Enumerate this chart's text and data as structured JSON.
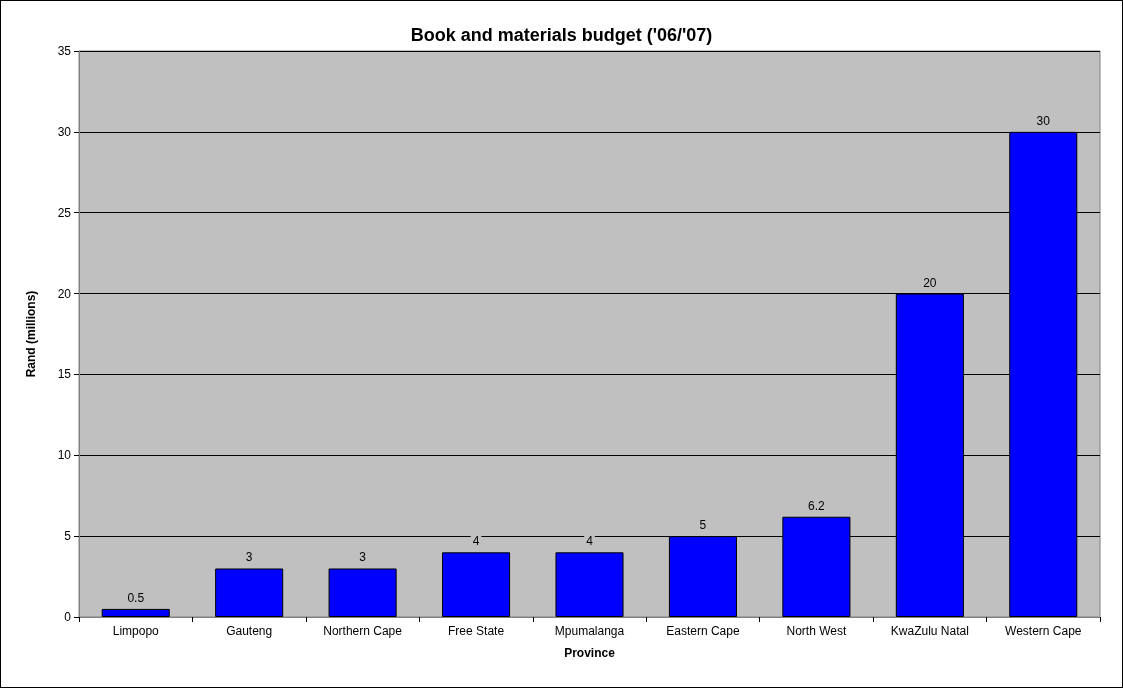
{
  "chart_data": {
    "type": "bar",
    "title": "Book and materials budget ('06/'07)",
    "xlabel": "Province",
    "ylabel": "Rand (millions)",
    "categories": [
      "Limpopo",
      "Gauteng",
      "Northern Cape",
      "Free State",
      "Mpumalanga",
      "Eastern Cape",
      "North West",
      "KwaZulu Natal",
      "Western Cape"
    ],
    "values": [
      0.5,
      3,
      3,
      4,
      4,
      5,
      6.2,
      20,
      30
    ],
    "color": "#0000ff",
    "ylim": [
      0,
      35
    ],
    "yticks": [
      0,
      5,
      10,
      15,
      20,
      25,
      30,
      35
    ],
    "grid": "y",
    "data_labels": true
  }
}
